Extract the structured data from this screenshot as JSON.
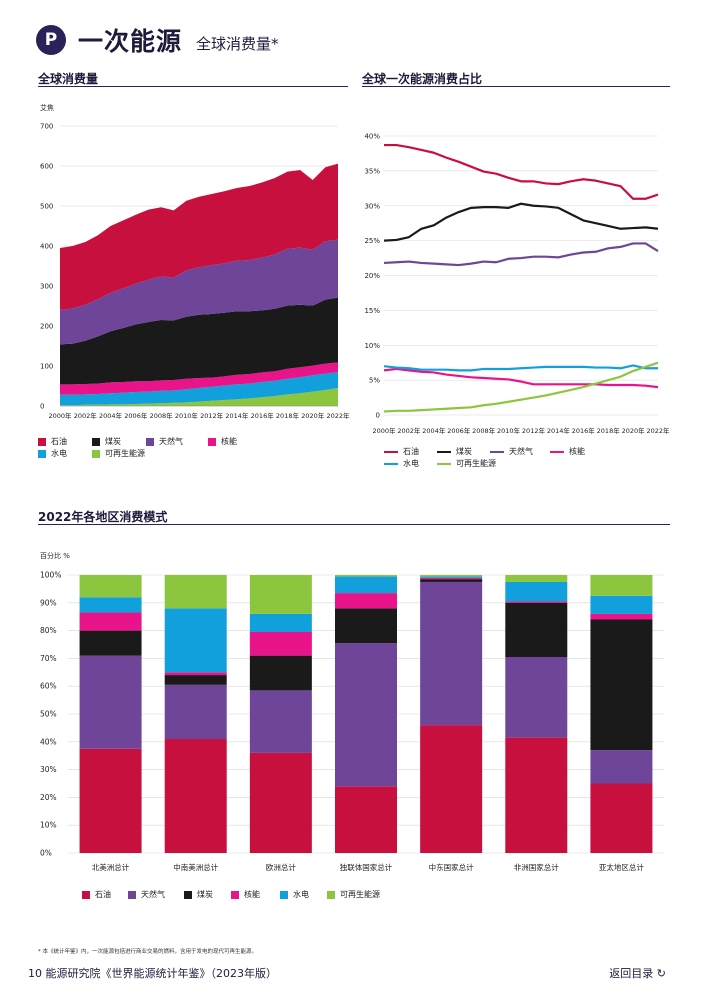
{
  "header": {
    "badge": "P",
    "title": "一次能源",
    "subtitle": "全球消费量*"
  },
  "colors": {
    "oil": "#c8103e",
    "coal": "#1a1a1a",
    "gas": "#6f459a",
    "nuclear": "#e9138a",
    "hydro": "#12a0dc",
    "renew": "#8cc63f"
  },
  "chart_data": [
    {
      "type": "area",
      "title": "全球消费量",
      "ylabel": "艾焦",
      "ylim": [
        0,
        700
      ],
      "yticks": [
        "0",
        "100",
        "200",
        "300",
        "400",
        "500",
        "600",
        "700"
      ],
      "xticks": [
        "2000年",
        "2002年",
        "2004年",
        "2006年",
        "2008年",
        "2010年",
        "2012年",
        "2014年",
        "2016年",
        "2018年",
        "2020年",
        "2022年"
      ],
      "x": [
        2000,
        2001,
        2002,
        2003,
        2004,
        2005,
        2006,
        2007,
        2008,
        2009,
        2010,
        2011,
        2012,
        2013,
        2014,
        2015,
        2016,
        2017,
        2018,
        2019,
        2020,
        2021,
        2022
      ],
      "stack_order": [
        "renew",
        "hydro",
        "nuclear",
        "coal",
        "gas",
        "oil"
      ],
      "series": [
        {
          "key": "renew",
          "name": "可再生能源",
          "values": [
            2,
            2,
            3,
            3,
            4,
            4,
            5,
            6,
            7,
            8,
            9,
            11,
            13,
            15,
            17,
            19,
            22,
            25,
            29,
            32,
            36,
            40,
            45
          ]
        },
        {
          "key": "hydro",
          "name": "水电",
          "values": [
            26,
            26,
            26,
            27,
            28,
            29,
            30,
            30,
            31,
            31,
            33,
            34,
            35,
            36,
            37,
            37,
            38,
            38,
            39,
            40,
            41,
            41,
            40
          ]
        },
        {
          "key": "nuclear",
          "name": "核能",
          "values": [
            26,
            26,
            26,
            26,
            27,
            27,
            27,
            26,
            26,
            26,
            26,
            25,
            23,
            23,
            24,
            24,
            24,
            24,
            25,
            25,
            24,
            25,
            24
          ]
        },
        {
          "key": "coal",
          "name": "煤炭",
          "values": [
            100,
            102,
            108,
            118,
            128,
            135,
            142,
            148,
            151,
            149,
            155,
            158,
            159,
            159,
            159,
            157,
            155,
            156,
            158,
            156,
            150,
            160,
            162
          ]
        },
        {
          "key": "gas",
          "name": "天然气",
          "values": [
            86,
            88,
            90,
            93,
            96,
            99,
            102,
            106,
            109,
            107,
            116,
            119,
            122,
            124,
            126,
            128,
            132,
            136,
            142,
            143,
            140,
            146,
            145
          ]
        },
        {
          "key": "oil",
          "name": "石油",
          "values": [
            155,
            156,
            157,
            160,
            167,
            170,
            172,
            175,
            173,
            168,
            174,
            176,
            178,
            180,
            182,
            185,
            188,
            191,
            193,
            194,
            174,
            185,
            190
          ]
        }
      ]
    },
    {
      "type": "line",
      "title": "全球一次能源消费占比",
      "ylim": [
        0,
        40
      ],
      "yticks": [
        "0",
        "5%",
        "10%",
        "15%",
        "20%",
        "25%",
        "30%",
        "35%",
        "40%"
      ],
      "xticks": [
        "2000年",
        "2002年",
        "2004年",
        "2006年",
        "2008年",
        "2010年",
        "2012年",
        "2014年",
        "2016年",
        "2018年",
        "2020年",
        "2022年"
      ],
      "x": [
        2000,
        2001,
        2002,
        2003,
        2004,
        2005,
        2006,
        2007,
        2008,
        2009,
        2010,
        2011,
        2012,
        2013,
        2014,
        2015,
        2016,
        2017,
        2018,
        2019,
        2020,
        2021,
        2022
      ],
      "series": [
        {
          "key": "oil",
          "name": "石油",
          "values": [
            38.7,
            38.7,
            38.4,
            38.0,
            37.6,
            36.9,
            36.3,
            35.6,
            34.9,
            34.6,
            34.0,
            33.5,
            33.5,
            33.2,
            33.1,
            33.5,
            33.8,
            33.6,
            33.2,
            32.8,
            31.0,
            31.0,
            31.6
          ]
        },
        {
          "key": "coal",
          "name": "煤炭",
          "values": [
            25.0,
            25.1,
            25.5,
            26.7,
            27.2,
            28.3,
            29.1,
            29.7,
            29.8,
            29.8,
            29.7,
            30.3,
            30.0,
            29.9,
            29.7,
            28.8,
            27.9,
            27.5,
            27.1,
            26.7,
            26.8,
            26.9,
            26.7
          ]
        },
        {
          "key": "gas",
          "name": "天然气",
          "values": [
            21.8,
            21.9,
            22.0,
            21.8,
            21.7,
            21.6,
            21.5,
            21.7,
            22.0,
            21.9,
            22.4,
            22.5,
            22.7,
            22.7,
            22.6,
            23.0,
            23.3,
            23.4,
            23.9,
            24.1,
            24.6,
            24.6,
            23.5
          ]
        },
        {
          "key": "nuclear",
          "name": "核能",
          "values": [
            6.4,
            6.6,
            6.4,
            6.2,
            6.1,
            5.8,
            5.6,
            5.4,
            5.3,
            5.2,
            5.1,
            4.8,
            4.4,
            4.4,
            4.4,
            4.4,
            4.4,
            4.4,
            4.3,
            4.3,
            4.3,
            4.2,
            4.0
          ]
        },
        {
          "key": "hydro",
          "name": "水电",
          "values": [
            7.0,
            6.8,
            6.7,
            6.5,
            6.5,
            6.5,
            6.4,
            6.4,
            6.6,
            6.6,
            6.6,
            6.7,
            6.8,
            6.9,
            6.9,
            6.9,
            6.9,
            6.8,
            6.8,
            6.7,
            7.1,
            6.7,
            6.7
          ]
        },
        {
          "key": "renew",
          "name": "可再生能源",
          "values": [
            0.5,
            0.6,
            0.6,
            0.7,
            0.8,
            0.9,
            1.0,
            1.1,
            1.4,
            1.6,
            1.9,
            2.2,
            2.5,
            2.8,
            3.2,
            3.6,
            4.0,
            4.5,
            5.0,
            5.5,
            6.3,
            6.9,
            7.5
          ]
        }
      ]
    },
    {
      "type": "bar",
      "title": "2022年各地区消费模式",
      "ylabel": "百分比 %",
      "ylim": [
        0,
        100
      ],
      "yticks": [
        "0%",
        "10%",
        "20%",
        "30%",
        "40%",
        "50%",
        "60%",
        "70%",
        "80%",
        "90%",
        "100%"
      ],
      "categories": [
        "北美洲总计",
        "中南美洲总计",
        "欧洲总计",
        "独联体国家总计",
        "中东国家总计",
        "非洲国家总计",
        "亚太地区总计"
      ],
      "stack_order": [
        "oil",
        "gas",
        "coal",
        "nuclear",
        "hydro",
        "renew"
      ],
      "series": [
        {
          "key": "oil",
          "name": "石油",
          "values": [
            37.5,
            41.0,
            36.0,
            24.0,
            46.0,
            41.5,
            25.0
          ]
        },
        {
          "key": "gas",
          "name": "天然气",
          "values": [
            33.5,
            19.5,
            22.5,
            51.5,
            51.5,
            29.0,
            12.0
          ]
        },
        {
          "key": "coal",
          "name": "煤炭",
          "values": [
            9.0,
            3.5,
            12.5,
            12.5,
            1.0,
            19.5,
            47.0
          ]
        },
        {
          "key": "nuclear",
          "name": "核能",
          "values": [
            6.5,
            1.0,
            8.5,
            5.5,
            0.5,
            0.5,
            2.0
          ]
        },
        {
          "key": "hydro",
          "name": "水电",
          "values": [
            5.5,
            23.0,
            6.5,
            6.0,
            0.5,
            7.0,
            6.5
          ]
        },
        {
          "key": "renew",
          "name": "可再生能源",
          "values": [
            8.0,
            12.0,
            14.0,
            0.5,
            0.5,
            2.5,
            7.5
          ]
        }
      ]
    }
  ],
  "footnote": "* 本《统计年鉴》内，一次能源包括进行商业交易的燃料，含用于发电的现代可再生能源。",
  "footer": {
    "left": "10  能源研究院《世界能源统计年鉴》（2023年版）",
    "right": "返回目录 ↻"
  }
}
